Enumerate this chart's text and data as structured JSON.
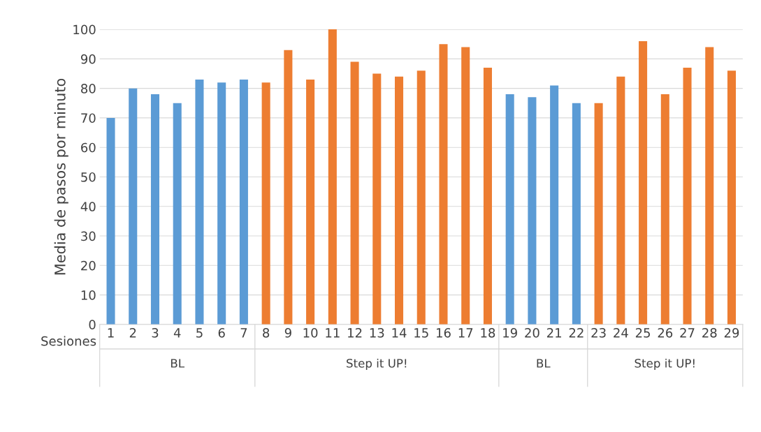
{
  "chart_data": {
    "type": "bar",
    "xlabel": "Sesiones",
    "ylabel": "Media de pasos por minuto",
    "categories": [
      "1",
      "2",
      "3",
      "4",
      "5",
      "6",
      "7",
      "8",
      "9",
      "10",
      "11",
      "12",
      "13",
      "14",
      "15",
      "16",
      "17",
      "18",
      "19",
      "20",
      "21",
      "22",
      "23",
      "24",
      "25",
      "26",
      "27",
      "28",
      "29"
    ],
    "values": [
      70,
      80,
      78,
      75,
      83,
      82,
      83,
      82,
      93,
      83,
      100,
      89,
      85,
      84,
      86,
      95,
      94,
      87,
      78,
      77,
      81,
      75,
      75,
      84,
      96,
      78,
      87,
      94,
      86
    ],
    "colors": [
      "#5b9bd5",
      "#5b9bd5",
      "#5b9bd5",
      "#5b9bd5",
      "#5b9bd5",
      "#5b9bd5",
      "#5b9bd5",
      "#ed7d31",
      "#ed7d31",
      "#ed7d31",
      "#ed7d31",
      "#ed7d31",
      "#ed7d31",
      "#ed7d31",
      "#ed7d31",
      "#ed7d31",
      "#ed7d31",
      "#ed7d31",
      "#5b9bd5",
      "#5b9bd5",
      "#5b9bd5",
      "#5b9bd5",
      "#ed7d31",
      "#ed7d31",
      "#ed7d31",
      "#ed7d31",
      "#ed7d31",
      "#ed7d31",
      "#ed7d31"
    ],
    "annotations": [
      "BL",
      "Step it UP!",
      "BL",
      "Step it UP!"
    ],
    "ylim": [
      0,
      100
    ],
    "yticks": [
      0,
      10,
      20,
      30,
      40,
      50,
      60,
      70,
      80,
      90,
      100
    ],
    "grid": "y"
  }
}
